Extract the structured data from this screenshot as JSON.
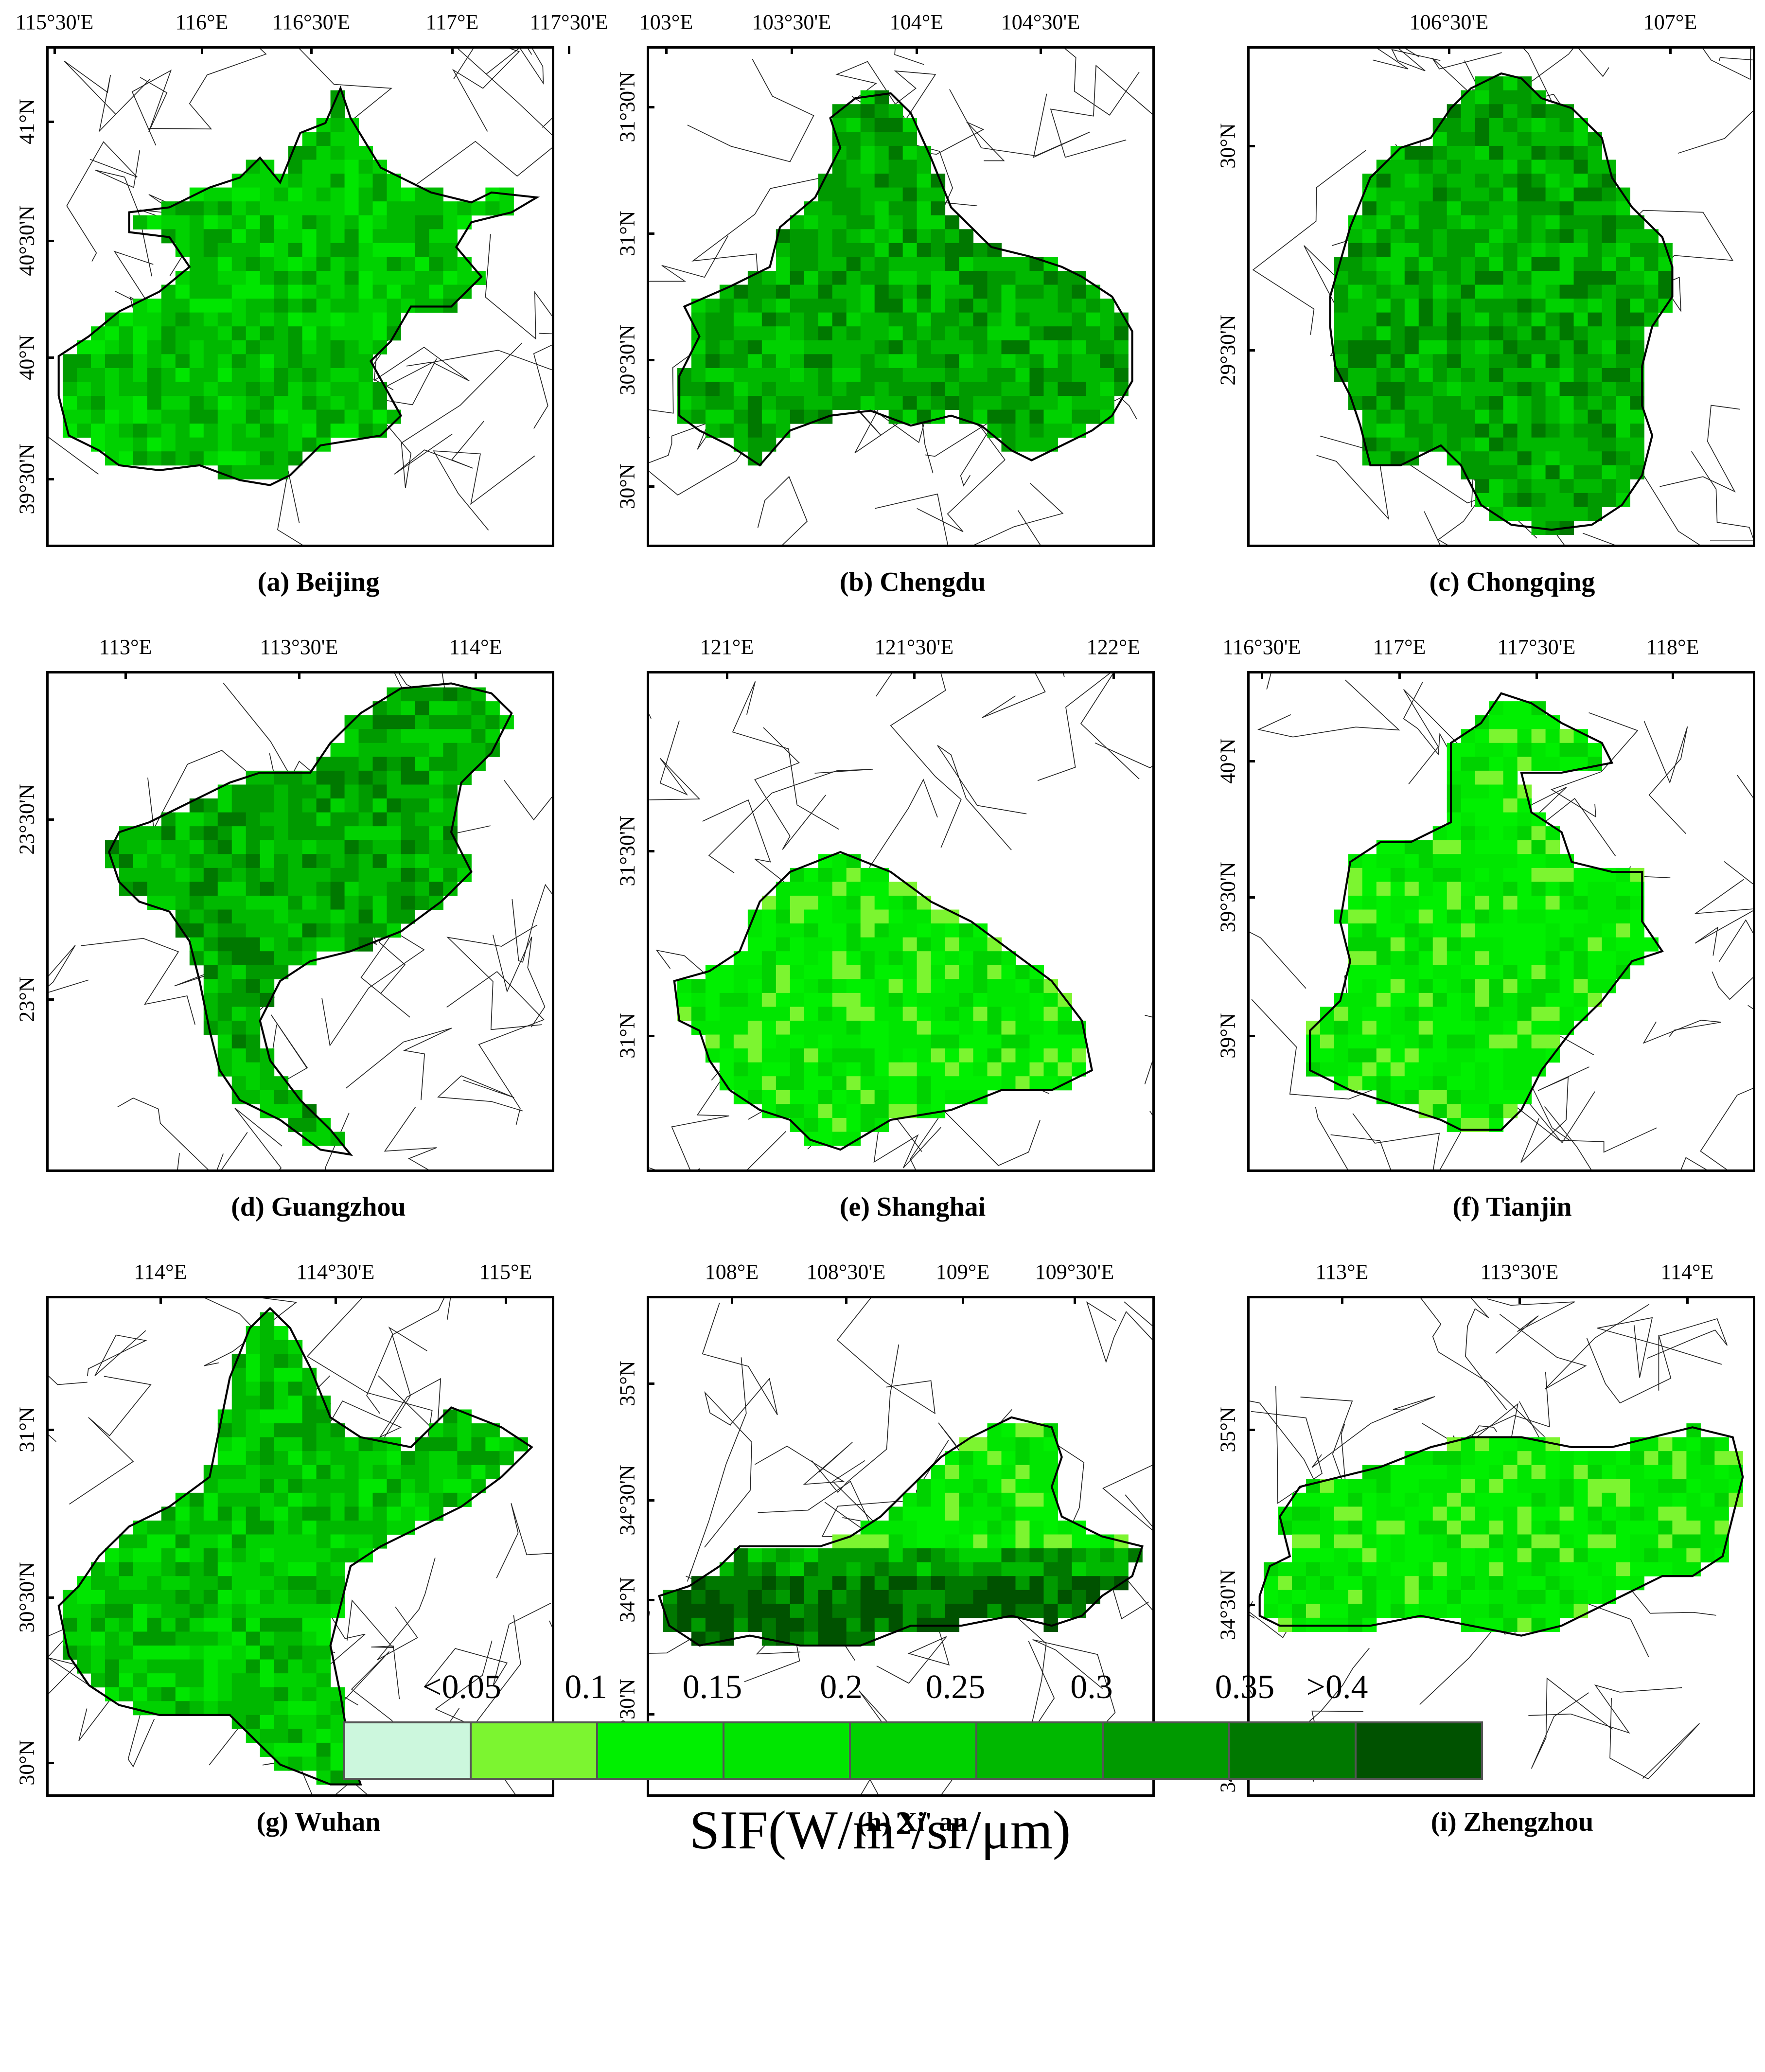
{
  "panels": [
    {
      "caption": "(a) Beijing",
      "lon_labels": [
        "115°30'E",
        "116°E",
        "116°30'E",
        "117°E",
        "117°30'E"
      ],
      "lat_labels": [
        "41°N",
        "40°30'N",
        "40°N",
        "39°30'N"
      ]
    },
    {
      "caption": "(b) Chengdu",
      "lon_labels": [
        "103°E",
        "103°30'E",
        "104°E",
        "104°30'E"
      ],
      "lat_labels": [
        "31°30'N",
        "31°N",
        "30°30'N",
        "30°N"
      ]
    },
    {
      "caption": "(c) Chongqing",
      "lon_labels": [
        "106°30'E",
        "107°E"
      ],
      "lat_labels": [
        "30°N",
        "29°30'N"
      ]
    },
    {
      "caption": "(d) Guangzhou",
      "lon_labels": [
        "113°E",
        "113°30'E",
        "114°E"
      ],
      "lat_labels": [
        "23°30'N",
        "23°N"
      ]
    },
    {
      "caption": "(e) Shanghai",
      "lon_labels": [
        "121°E",
        "121°30'E",
        "122°E"
      ],
      "lat_labels": [
        "31°30'N",
        "31°N"
      ]
    },
    {
      "caption": "(f) Tianjin",
      "lon_labels": [
        "116°30'E",
        "117°E",
        "117°30'E",
        "118°E"
      ],
      "lat_labels": [
        "40°N",
        "39°30'N",
        "39°N"
      ]
    },
    {
      "caption": "(g) Wuhan",
      "lon_labels": [
        "114°E",
        "114°30'E",
        "115°E"
      ],
      "lat_labels": [
        "31°N",
        "30°30'N",
        "30°N"
      ]
    },
    {
      "caption": "(h) Xi' an",
      "lon_labels": [
        "108°E",
        "108°30'E",
        "109°E",
        "109°30'E"
      ],
      "lat_labels": [
        "35°N",
        "34°30'N",
        "34°N",
        "33°30'N"
      ]
    },
    {
      "caption": "(i) Zhengzhou",
      "lon_labels": [
        "113°E",
        "113°30'E",
        "114°E"
      ],
      "lat_labels": [
        "35°N",
        "34°30'N",
        "34°N"
      ]
    }
  ],
  "legend": {
    "labels": [
      "<0.05",
      "0.1",
      "0.15",
      "0.2",
      "0.25",
      "0.3",
      "0.35",
      ">0.4"
    ],
    "colors": [
      "#ccf7dd",
      "#7cf530",
      "#00f000",
      "#00e600",
      "#00d200",
      "#00b800",
      "#009a00",
      "#007800",
      "#005200"
    ],
    "title": "SIF(W/m²/sr/μm)"
  }
}
